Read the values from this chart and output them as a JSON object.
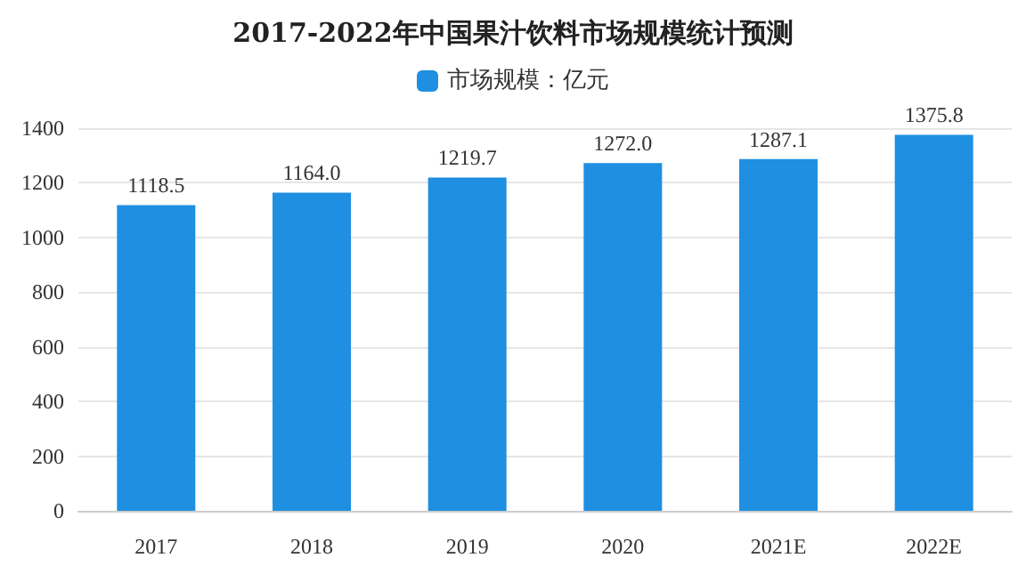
{
  "chart_data": {
    "type": "bar",
    "title": "2017-2022年中国果汁饮料市场规模统计预测",
    "categories": [
      "2017",
      "2018",
      "2019",
      "2020",
      "2021E",
      "2022E"
    ],
    "series": [
      {
        "name": "市场规模：亿元",
        "color": "#1e8fe1",
        "values": [
          1118.5,
          1164.0,
          1219.7,
          1272.0,
          1287.1,
          1375.8
        ]
      }
    ],
    "value_labels": [
      "1118.5",
      "1164.0",
      "1219.7",
      "1272.0",
      "1287.1",
      "1375.8"
    ],
    "ylim": [
      0,
      1400
    ],
    "yticks": [
      0,
      200,
      400,
      600,
      800,
      1000,
      1200,
      1400
    ],
    "grid": "y",
    "legend": "top"
  }
}
